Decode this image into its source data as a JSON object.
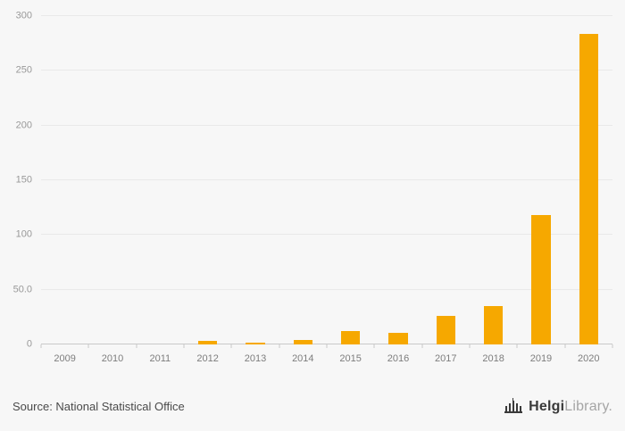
{
  "chart_data": {
    "type": "bar",
    "title": "",
    "xlabel": "",
    "ylabel": "",
    "categories": [
      "2009",
      "2010",
      "2011",
      "2012",
      "2013",
      "2014",
      "2015",
      "2016",
      "2017",
      "2018",
      "2019",
      "2020"
    ],
    "values": [
      0,
      0,
      0,
      3,
      2,
      4,
      12,
      11,
      26,
      35,
      118,
      284
    ],
    "ylim": [
      0,
      300
    ],
    "yticks": [
      {
        "value": 0,
        "label": "0"
      },
      {
        "value": 50,
        "label": "50.0"
      },
      {
        "value": 100,
        "label": "100"
      },
      {
        "value": 150,
        "label": "150"
      },
      {
        "value": 200,
        "label": "200"
      },
      {
        "value": 250,
        "label": "250"
      },
      {
        "value": 300,
        "label": "300"
      }
    ],
    "bar_color": "#F6A800",
    "grid": true,
    "legend": false
  },
  "footer": {
    "source": "Source: National Statistical Office",
    "logo": {
      "brand_bold": "Helgi",
      "brand_light": "Library."
    }
  },
  "colors": {
    "background": "#f7f7f7",
    "gridline": "#e9e9e9",
    "axis_line": "#c9c9c9",
    "bar": "#F6A800",
    "tick_label": "#999999",
    "source_text": "#4a4a4a"
  }
}
